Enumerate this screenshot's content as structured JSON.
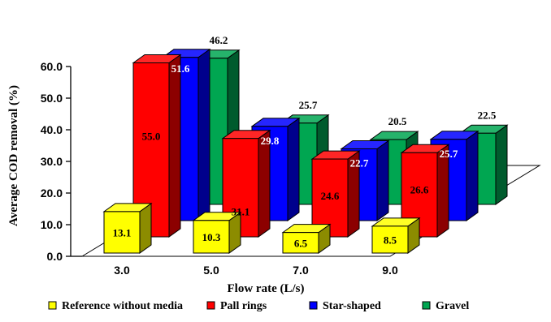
{
  "chart_data": {
    "type": "bar",
    "title": "",
    "xlabel": "Flow rate (L/s)",
    "ylabel": "Average COD removal (%)",
    "categories": [
      "3.0",
      "5.0",
      "7.0",
      "9.0"
    ],
    "ylim": [
      0,
      60
    ],
    "yticks": [
      "0.0",
      "10.0",
      "20.0",
      "30.0",
      "40.0",
      "50.0",
      "60.0"
    ],
    "series": [
      {
        "name": "Reference without media",
        "color": "#ffff00",
        "values": [
          13.1,
          10.3,
          6.5,
          8.5
        ],
        "labels": [
          "13.1",
          "10.3",
          "6.5",
          "8.5"
        ]
      },
      {
        "name": "Pall rings",
        "color": "#ff0000",
        "values": [
          55.0,
          31.1,
          24.6,
          26.6
        ],
        "labels": [
          "55.0",
          "31.1",
          "24.6",
          "26.6"
        ]
      },
      {
        "name": "Star-shaped",
        "color": "#0000ff",
        "values": [
          51.6,
          29.8,
          22.7,
          25.7
        ],
        "labels": [
          "51.6",
          "29.8",
          "22.7",
          "25.7"
        ]
      },
      {
        "name": "Gravel",
        "color": "#00a651",
        "values": [
          46.2,
          25.7,
          20.5,
          22.5
        ],
        "labels": [
          "46.2",
          "25.7",
          "20.5",
          "22.5"
        ]
      }
    ],
    "grid": false,
    "legend_position": "bottom",
    "style": "3d-depth-bar"
  }
}
